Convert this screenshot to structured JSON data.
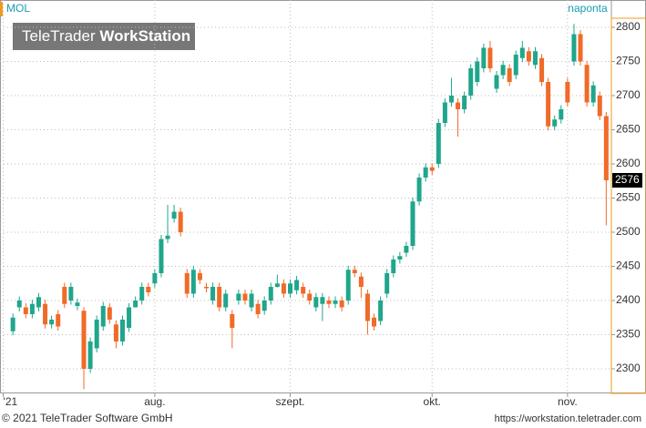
{
  "chart_data": {
    "type": "candlestick",
    "title": "MOL",
    "interval": "naponta",
    "watermark": [
      "TeleTrader",
      "WorkStation"
    ],
    "footer_left": "© 2021 TeleTrader Software GmbH",
    "footer_right": "https://workstation.teletrader.com",
    "up_color": "#1fa68c",
    "down_color": "#f06a28",
    "grid": true,
    "xlim": [
      -2,
      92.8
    ],
    "xticks": [
      {
        "value": -1.5,
        "label": "'21"
      },
      {
        "value": 22,
        "label": "aug."
      },
      {
        "value": 43,
        "label": "szept."
      },
      {
        "value": 65,
        "label": "okt."
      },
      {
        "value": 86,
        "label": "nov."
      }
    ],
    "ylim": [
      2264,
      2840
    ],
    "yticks": [
      2300,
      2350,
      2400,
      2450,
      2500,
      2550,
      2600,
      2650,
      2700,
      2750,
      2800
    ],
    "open": [
      2355,
      2390,
      2390,
      2380,
      2390,
      2395,
      2365,
      2380,
      2420,
      2400,
      2392,
      2385,
      2300,
      2330,
      2362,
      2390,
      2365,
      2340,
      2360,
      2390,
      2400,
      2420,
      2425,
      2440,
      2490,
      2520,
      2530,
      2440,
      2410,
      2440,
      2420,
      2400,
      2420,
      2390,
      2380,
      2400,
      2410,
      2390,
      2395,
      2385,
      2400,
      2420,
      2425,
      2410,
      2415,
      2420,
      2410,
      2390,
      2395,
      2400,
      2395,
      2400,
      2400,
      2445,
      2435,
      2410,
      2375,
      2370,
      2410,
      2440,
      2460,
      2470,
      2480,
      2545,
      2580,
      2595,
      2600,
      2660,
      2690,
      2690,
      2680,
      2700,
      2720,
      2740,
      2770,
      2710,
      2730,
      2740,
      2730,
      2755,
      2765,
      2745,
      2755,
      2720,
      2655,
      2665,
      2720,
      2750,
      2790,
      2745,
      2690,
      2700,
      2670
    ],
    "high": [
      2381,
      2406,
      2396,
      2401,
      2411,
      2401,
      2378,
      2386,
      2426,
      2426,
      2403,
      2390,
      2346,
      2378,
      2398,
      2396,
      2371,
      2378,
      2396,
      2406,
      2426,
      2426,
      2446,
      2496,
      2540,
      2540,
      2536,
      2446,
      2451,
      2446,
      2426,
      2426,
      2426,
      2416,
      2386,
      2416,
      2416,
      2416,
      2401,
      2406,
      2426,
      2438,
      2431,
      2431,
      2436,
      2426,
      2416,
      2411,
      2411,
      2406,
      2406,
      2406,
      2451,
      2451,
      2441,
      2416,
      2381,
      2406,
      2446,
      2466,
      2471,
      2486,
      2551,
      2586,
      2601,
      2601,
      2666,
      2696,
      2726,
      2696,
      2706,
      2746,
      2756,
      2776,
      2780,
      2736,
      2751,
      2746,
      2766,
      2780,
      2771,
      2771,
      2761,
      2726,
      2671,
      2686,
      2726,
      2805,
      2796,
      2751,
      2721,
      2706,
      2676
    ],
    "low": [
      2349,
      2384,
      2374,
      2374,
      2384,
      2359,
      2359,
      2356,
      2389,
      2394,
      2386,
      2270,
      2294,
      2324,
      2356,
      2366,
      2330,
      2334,
      2354,
      2394,
      2394,
      2406,
      2419,
      2434,
      2484,
      2514,
      2494,
      2404,
      2404,
      2424,
      2412,
      2394,
      2384,
      2384,
      2330,
      2394,
      2394,
      2384,
      2374,
      2379,
      2394,
      2419,
      2404,
      2404,
      2409,
      2404,
      2394,
      2384,
      2370,
      2389,
      2389,
      2384,
      2394,
      2434,
      2404,
      2350,
      2356,
      2364,
      2404,
      2434,
      2454,
      2464,
      2474,
      2539,
      2574,
      2584,
      2594,
      2654,
      2684,
      2640,
      2674,
      2694,
      2714,
      2734,
      2734,
      2704,
      2724,
      2714,
      2724,
      2749,
      2744,
      2739,
      2714,
      2649,
      2649,
      2659,
      2684,
      2744,
      2744,
      2684,
      2684,
      2664,
      2510
    ],
    "close": [
      2375,
      2400,
      2380,
      2395,
      2405,
      2365,
      2372,
      2362,
      2395,
      2420,
      2397,
      2300,
      2340,
      2372,
      2392,
      2372,
      2340,
      2372,
      2390,
      2400,
      2420,
      2412,
      2440,
      2490,
      2495,
      2530,
      2500,
      2410,
      2445,
      2430,
      2418,
      2420,
      2390,
      2410,
      2360,
      2410,
      2400,
      2410,
      2380,
      2400,
      2420,
      2425,
      2410,
      2425,
      2430,
      2410,
      2400,
      2405,
      2405,
      2395,
      2400,
      2390,
      2445,
      2440,
      2420,
      2370,
      2362,
      2400,
      2440,
      2460,
      2465,
      2480,
      2545,
      2580,
      2595,
      2590,
      2660,
      2690,
      2700,
      2680,
      2700,
      2740,
      2750,
      2770,
      2740,
      2730,
      2745,
      2720,
      2760,
      2770,
      2750,
      2765,
      2720,
      2655,
      2665,
      2680,
      2690,
      2790,
      2750,
      2690,
      2715,
      2670,
      2576
    ]
  }
}
